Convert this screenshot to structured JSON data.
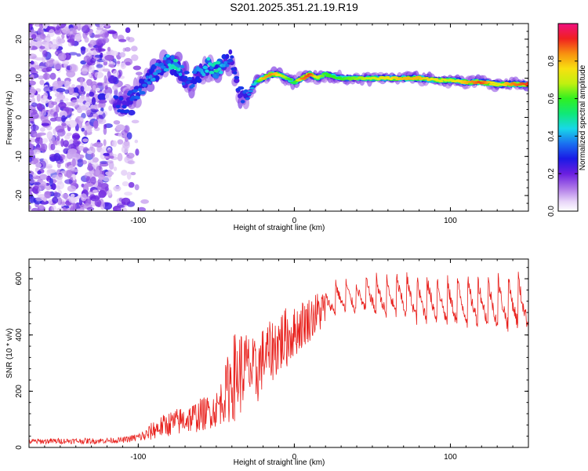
{
  "title": "S201.2025.351.21.19.R19",
  "chart_data": [
    {
      "type": "heatmap",
      "title": "",
      "xlabel": "Height of straight line (km)",
      "ylabel": "Frequency (Hz)",
      "xlim": [
        -170,
        150
      ],
      "ylim": [
        -24,
        24
      ],
      "xticks": [
        -100,
        0,
        100
      ],
      "xtick_labels": [
        "-100",
        "0",
        "100"
      ],
      "yticks": [
        -20,
        -10,
        0,
        10,
        20
      ],
      "ytick_labels": [
        "-20",
        "-10",
        "0",
        "10",
        "20"
      ],
      "colorbar": {
        "label": "Normalized spectral amplitude",
        "range": [
          0,
          1
        ],
        "ticks": [
          0.0,
          0.2,
          0.4,
          0.6,
          0.8
        ],
        "tick_labels": [
          "0.0",
          "0.2",
          "0.4",
          "0.6",
          "0.8"
        ]
      },
      "ridge": {
        "x": [
          -115,
          -108,
          -100,
          -95,
          -90,
          -85,
          -80,
          -75,
          -70,
          -65,
          -60,
          -55,
          -50,
          -45,
          -40,
          -35,
          -30,
          -25,
          -20,
          -15,
          -10,
          -5,
          0,
          5,
          10,
          15,
          20,
          30,
          40,
          50,
          60,
          70,
          80,
          90,
          100,
          110,
          120,
          130,
          140,
          150
        ],
        "y": [
          4,
          3,
          7,
          9,
          11,
          13,
          14,
          13,
          10,
          9,
          12,
          13,
          12,
          14,
          15,
          6,
          5,
          9,
          10,
          11,
          11,
          10,
          9,
          10,
          11,
          10,
          11,
          10,
          10,
          10,
          10,
          10,
          10,
          9.5,
          9.5,
          9,
          9,
          8.5,
          8.5,
          8.5
        ],
        "amplitude": [
          0.3,
          0.3,
          0.35,
          0.35,
          0.4,
          0.35,
          0.45,
          0.5,
          0.3,
          0.35,
          0.4,
          0.45,
          0.5,
          0.4,
          0.3,
          0.3,
          0.35,
          0.45,
          0.8,
          0.85,
          0.75,
          0.65,
          0.55,
          0.85,
          0.9,
          0.7,
          0.6,
          0.6,
          0.65,
          0.7,
          0.75,
          0.8,
          0.8,
          0.75,
          0.7,
          0.8,
          0.9,
          0.7,
          0.85,
          0.9
        ]
      }
    },
    {
      "type": "line",
      "title": "",
      "xlabel": "Height of straight line (km)",
      "ylabel": "SNR (10 * v/v)",
      "xlim": [
        -170,
        150
      ],
      "ylim": [
        0,
        670
      ],
      "xticks": [
        -100,
        0,
        100
      ],
      "xtick_labels": [
        "-100",
        "0",
        "100"
      ],
      "yticks": [
        0,
        200,
        400,
        600
      ],
      "ytick_labels": [
        "0",
        "200",
        "400",
        "600"
      ],
      "series": [
        {
          "name": "SNR",
          "color": "#e8201c",
          "x": [
            -170,
            -150,
            -130,
            -110,
            -100,
            -95,
            -90,
            -85,
            -80,
            -75,
            -70,
            -65,
            -60,
            -55,
            -50,
            -45,
            -40,
            -35,
            -30,
            -25,
            -20,
            -15,
            -10,
            -5,
            0,
            5,
            10,
            15,
            20,
            25,
            30,
            40,
            50,
            60,
            70,
            80,
            90,
            100,
            110,
            120,
            130,
            140,
            150
          ],
          "y": [
            20,
            22,
            22,
            25,
            35,
            40,
            60,
            70,
            80,
            85,
            95,
            100,
            110,
            120,
            130,
            170,
            230,
            250,
            280,
            240,
            310,
            330,
            360,
            380,
            400,
            430,
            450,
            470,
            490,
            530,
            540,
            540,
            545,
            540,
            545,
            530,
            535,
            520,
            525,
            530,
            520,
            525,
            520
          ],
          "spread": [
            10,
            10,
            10,
            10,
            15,
            25,
            35,
            40,
            45,
            50,
            50,
            55,
            60,
            60,
            65,
            90,
            160,
            160,
            120,
            130,
            110,
            110,
            120,
            110,
            90,
            90,
            80,
            80,
            70,
            70,
            70,
            70,
            80,
            90,
            95,
            95,
            100,
            100,
            100,
            105,
            110,
            110,
            110
          ]
        }
      ]
    }
  ]
}
